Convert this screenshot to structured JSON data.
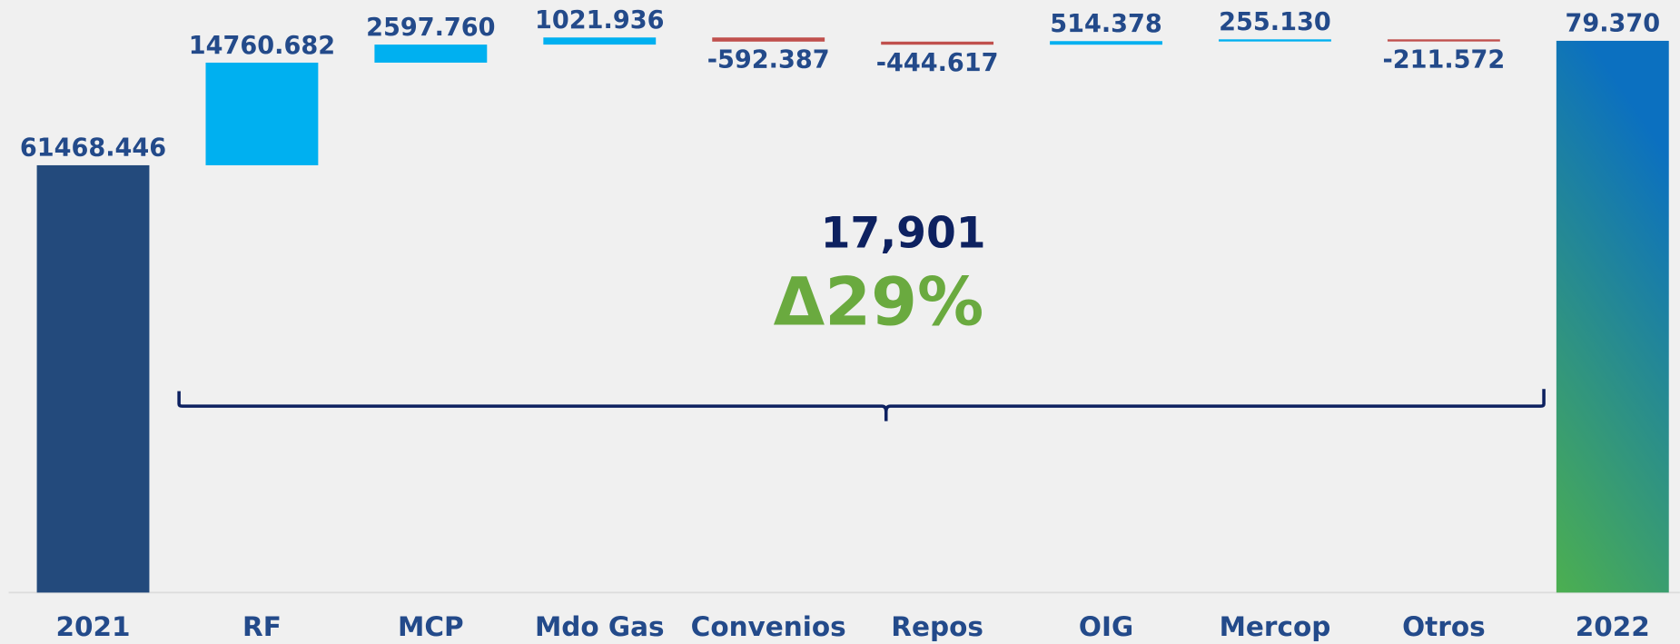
{
  "chart_data": {
    "type": "waterfall",
    "categories": [
      "2021",
      "RF",
      "MCP",
      "Mdo Gas",
      "Convenios",
      "Repos",
      "OIG",
      "Mercop",
      "Otros",
      "2022"
    ],
    "values": [
      61468.446,
      14760.682,
      2597.76,
      1021.936,
      -592.387,
      -444.617,
      514.378,
      255.13,
      -211.572,
      79370
    ],
    "value_labels": [
      "61468.446",
      "14760.682",
      "2597.760",
      "1021.936",
      "-592.387",
      "-444.617",
      "514.378",
      "255.130",
      "-211.572",
      "79.370"
    ],
    "ylim": [
      0,
      80000
    ],
    "total_color": "#234a7c",
    "increase_color": "#00b0f0",
    "decrease_color": "#c0504d",
    "end_gradient": [
      "#4caf50",
      "#0b70c0"
    ],
    "annotations": [
      "17,901",
      "Δ29%"
    ]
  }
}
